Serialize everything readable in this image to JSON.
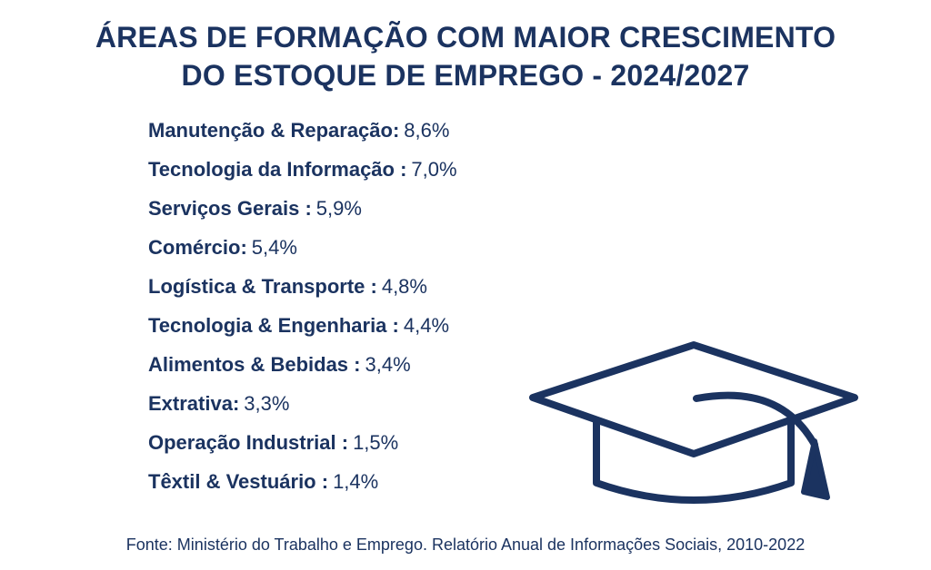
{
  "title": {
    "line1": "ÁREAS DE FORMAÇÃO COM MAIOR CRESCIMENTO",
    "line2": "DO ESTOQUE DE EMPREGO - 2024/2027"
  },
  "items": [
    {
      "label": "Manutenção & Reparação:",
      "value": "8,6%"
    },
    {
      "label": "Tecnologia da Informação :",
      "value": "7,0%"
    },
    {
      "label": "Serviços Gerais :",
      "value": "5,9%"
    },
    {
      "label": "Comércio:",
      "value": "5,4%"
    },
    {
      "label": "Logística & Transporte :",
      "value": "4,8%"
    },
    {
      "label": "Tecnologia & Engenharia :",
      "value": "4,4%"
    },
    {
      "label": "Alimentos & Bebidas :",
      "value": "3,4%"
    },
    {
      "label": "Extrativa:",
      "value": "3,3%"
    },
    {
      "label": "Operação Industrial :",
      "value": "1,5%"
    },
    {
      "label": "Têxtil & Vestuário :",
      "value": "1,4%"
    }
  ],
  "icon": "graduation-cap-icon",
  "source": "Fonte: Ministério do Trabalho e Emprego. Relatório Anual de Informações Sociais, 2010-2022",
  "colors": {
    "primary": "#1b3360",
    "background": "#ffffff"
  }
}
